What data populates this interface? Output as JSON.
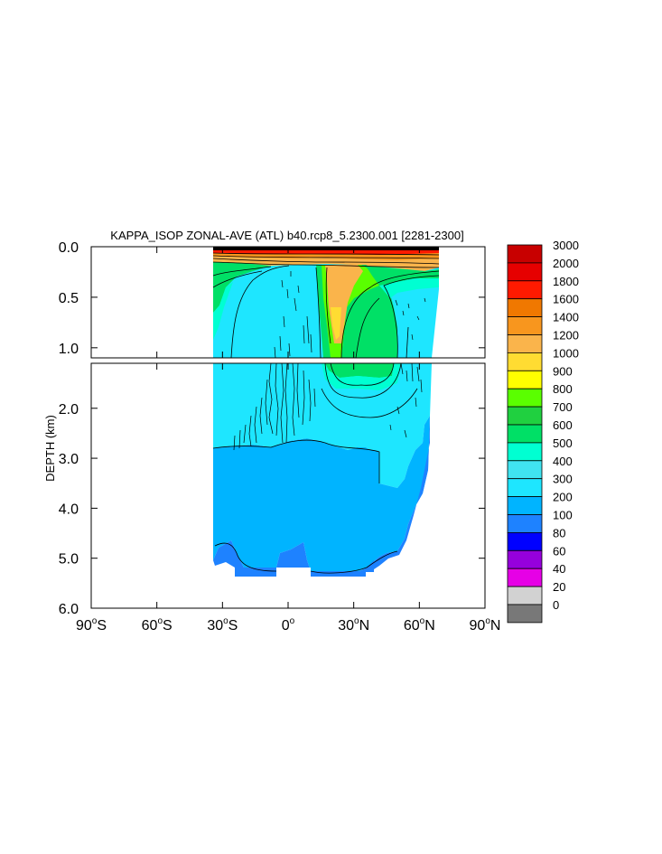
{
  "chart_data": {
    "type": "heatmap",
    "title": "KAPPA_ISOP ZONAL-AVE (ATL) b40.rcp8_5.2300.001 [2281-2300]",
    "xlabel": "",
    "ylabel": "DEPTH (km)",
    "xlim": [
      -90,
      90
    ],
    "ylim_top_panel": [
      0.0,
      1.1
    ],
    "ylim_bottom_panel": [
      1.1,
      6.0
    ],
    "x_ticks": [
      {
        "deg": "90",
        "sup": "o",
        "hem": "S",
        "value": -90
      },
      {
        "deg": "60",
        "sup": "o",
        "hem": "S",
        "value": -60
      },
      {
        "deg": "30",
        "sup": "o",
        "hem": "S",
        "value": -30
      },
      {
        "deg": "0",
        "sup": "o",
        "hem": "",
        "value": 0
      },
      {
        "deg": "30",
        "sup": "o",
        "hem": "N",
        "value": 30
      },
      {
        "deg": "60",
        "sup": "o",
        "hem": "N",
        "value": 60
      },
      {
        "deg": "90",
        "sup": "o",
        "hem": "N",
        "value": 90
      }
    ],
    "y_ticks_top": [
      {
        "label": "0.0",
        "value": 0.0
      },
      {
        "label": "0.5",
        "value": 0.5
      },
      {
        "label": "1.0",
        "value": 1.0
      }
    ],
    "y_ticks_bottom": [
      {
        "label": "2.0",
        "value": 2.0
      },
      {
        "label": "3.0",
        "value": 3.0
      },
      {
        "label": "4.0",
        "value": 4.0
      },
      {
        "label": "5.0",
        "value": 5.0
      },
      {
        "label": "6.0",
        "value": 6.0
      }
    ],
    "colorbar": {
      "labels": [
        "3000",
        "2000",
        "1800",
        "1600",
        "1400",
        "1200",
        "1000",
        "900",
        "800",
        "700",
        "600",
        "500",
        "400",
        "300",
        "200",
        "100",
        "80",
        "60",
        "40",
        "20",
        "0"
      ],
      "colors": [
        "#c80000",
        "#e60000",
        "#ff1a00",
        "#f07800",
        "#f8961e",
        "#fab44b",
        "#ffdc32",
        "#ffff00",
        "#5aff00",
        "#20d040",
        "#00e066",
        "#00ffd2",
        "#40e4f0",
        "#1ee6ff",
        "#00b4ff",
        "#1e82ff",
        "#0000ff",
        "#9600dc",
        "#e600e6",
        "#d2d2d2",
        "#787878"
      ]
    },
    "field_notes": "Zonal-average isopycnal diffusivity (Atlantic); ocean data spans roughly 35S to 67N, deepest basin near 5.4 km."
  }
}
